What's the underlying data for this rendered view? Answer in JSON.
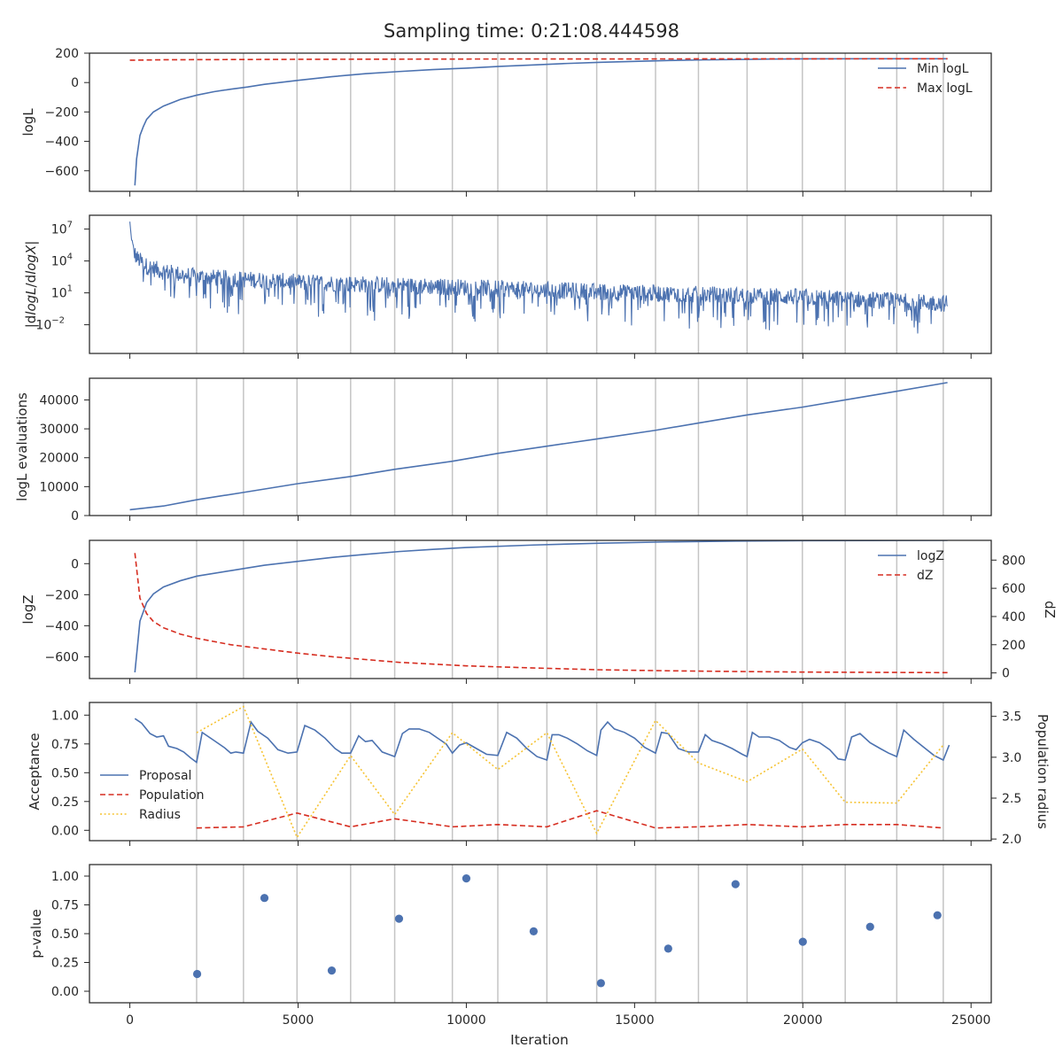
{
  "figure": {
    "title": "Sampling time: 0:21:08.444598",
    "xlabel": "Iteration",
    "xticks": [
      0,
      5000,
      10000,
      15000,
      20000,
      25000
    ],
    "xlim": [
      -1200,
      25600
    ],
    "insertion_lines": [
      1984,
      3377,
      4968,
      6561,
      7871,
      9585,
      10936,
      12394,
      13875,
      15623,
      16898,
      18344,
      19987,
      21260,
      22792,
      24174
    ],
    "colors": {
      "blue": "#4c72b0",
      "red": "#d62d20",
      "yellow": "#f6c333",
      "grid": "#c4c4c4"
    }
  },
  "chart_data": [
    {
      "id": "logl",
      "type": "line",
      "ylabel": "logL",
      "ylim": [
        -740,
        200
      ],
      "yticks": [
        200,
        0,
        -200,
        -400,
        -600
      ],
      "yticklabels": [
        "200",
        "0",
        "−200",
        "−400",
        "−600"
      ],
      "legend": "top-right",
      "series": [
        {
          "name": "Min logL",
          "style": "solid",
          "color": "#4c72b0",
          "x": [
            150,
            200,
            300,
            400,
            500,
            700,
            1000,
            1500,
            2000,
            2500,
            3000,
            3500,
            4000,
            5000,
            6000,
            7000,
            8000,
            9000,
            10000,
            11000,
            12000,
            13000,
            14000,
            15000,
            16000,
            17000,
            18000,
            19000,
            20000,
            22000,
            24300
          ],
          "y": [
            -700,
            -520,
            -360,
            -300,
            -250,
            -200,
            -160,
            -115,
            -85,
            -62,
            -45,
            -30,
            -12,
            15,
            40,
            60,
            75,
            88,
            98,
            110,
            120,
            130,
            138,
            144,
            150,
            154,
            157,
            160,
            161,
            162,
            162
          ]
        },
        {
          "name": "Max logL",
          "style": "dashed",
          "color": "#d62d20",
          "x": [
            0,
            1000,
            5000,
            10000,
            24300
          ],
          "y": [
            152,
            155,
            158,
            160,
            162
          ]
        }
      ]
    },
    {
      "id": "dlogl",
      "type": "line",
      "ylabel": "|dlogL/dlogX|",
      "scale": "log",
      "ylim_log10": [
        -4.7,
        8.3
      ],
      "yticks_log10": [
        7,
        4,
        1,
        -2
      ],
      "series": [
        {
          "name": "",
          "style": "noisy",
          "color": "#4c72b0",
          "x": [
            0,
            50,
            100,
            200,
            500,
            1000,
            2000,
            5000,
            10000,
            15000,
            20000,
            24300
          ],
          "y_log10": [
            7.7,
            6.0,
            5.0,
            4.3,
            3.5,
            3.0,
            2.5,
            2.0,
            1.5,
            1.0,
            0.6,
            0.0
          ]
        }
      ]
    },
    {
      "id": "nlike",
      "type": "line",
      "ylabel": "logL evaluations",
      "ylim": [
        0,
        47500
      ],
      "yticks": [
        0,
        10000,
        20000,
        30000,
        40000
      ],
      "series": [
        {
          "name": "",
          "style": "solid",
          "color": "#4c72b0",
          "x": [
            0,
            1000,
            2000,
            3377,
            4968,
            6561,
            7871,
            9585,
            10936,
            12394,
            13875,
            15623,
            16898,
            18344,
            19987,
            21260,
            22792,
            24300
          ],
          "y": [
            2000,
            3300,
            5500,
            8000,
            11000,
            13500,
            16000,
            18800,
            21500,
            24000,
            26500,
            29500,
            32000,
            34800,
            37500,
            40000,
            43000,
            46000
          ]
        }
      ]
    },
    {
      "id": "logz",
      "type": "line",
      "ylabel": "logZ",
      "ylabel_right": "dZ",
      "ylim": [
        -740,
        150
      ],
      "yticks": [
        0,
        -200,
        -400,
        -600
      ],
      "yticklabels": [
        "0",
        "−200",
        "−400",
        "−600"
      ],
      "ylim_right": [
        -40,
        940
      ],
      "yticks_right": [
        0,
        200,
        400,
        600,
        800
      ],
      "legend": "top-right",
      "series": [
        {
          "name": "logZ",
          "style": "solid",
          "color": "#4c72b0",
          "axis": "left",
          "x": [
            150,
            300,
            500,
            700,
            1000,
            1500,
            2000,
            3000,
            4000,
            5000,
            6000,
            7000,
            8000,
            9000,
            10000,
            12000,
            14000,
            16000,
            18000,
            20000,
            22000,
            24300
          ],
          "y": [
            -700,
            -370,
            -250,
            -195,
            -150,
            -110,
            -80,
            -45,
            -10,
            15,
            40,
            60,
            78,
            92,
            104,
            120,
            132,
            140,
            145,
            148,
            149,
            150
          ]
        },
        {
          "name": "dZ",
          "style": "dashed",
          "color": "#d62d20",
          "axis": "right",
          "x": [
            150,
            300,
            500,
            700,
            1000,
            1500,
            2000,
            3000,
            4000,
            5000,
            6000,
            7000,
            8000,
            10000,
            12000,
            14000,
            16000,
            18000,
            20000,
            22000,
            24300
          ],
          "y": [
            850,
            530,
            420,
            365,
            320,
            275,
            245,
            200,
            170,
            140,
            115,
            95,
            75,
            50,
            35,
            22,
            15,
            10,
            6,
            4,
            2
          ]
        }
      ]
    },
    {
      "id": "acceptance",
      "type": "line",
      "ylabel": "Acceptance",
      "ylabel_right": "Population radius",
      "ylim": [
        -0.09,
        1.11
      ],
      "yticks": [
        1.0,
        0.75,
        0.5,
        0.25,
        0.0
      ],
      "yticklabels": [
        "1.00",
        "0.75",
        "0.50",
        "0.25",
        "0.00"
      ],
      "ylim_right": [
        1.98,
        3.67
      ],
      "yticks_right": [
        2.0,
        2.5,
        3.0,
        3.5
      ],
      "legend": "bottom-left",
      "series": [
        {
          "name": "Proposal",
          "style": "solid",
          "color": "#4c72b0",
          "axis": "left",
          "x": [
            150,
            350,
            600,
            800,
            1000,
            1150,
            1400,
            1600,
            1800,
            1984,
            2150,
            2500,
            2800,
            3000,
            3150,
            3377,
            3600,
            3800,
            4100,
            4400,
            4700,
            4968,
            5200,
            5500,
            5800,
            6100,
            6300,
            6561,
            6800,
            7000,
            7200,
            7500,
            7871,
            8100,
            8300,
            8600,
            8900,
            9200,
            9400,
            9585,
            9800,
            10000,
            10300,
            10600,
            10936,
            11200,
            11500,
            11800,
            12100,
            12394,
            12550,
            12750,
            13000,
            13300,
            13600,
            13875,
            14000,
            14200,
            14400,
            14700,
            15000,
            15300,
            15623,
            15800,
            16000,
            16300,
            16600,
            16898,
            17100,
            17300,
            17600,
            17900,
            18200,
            18344,
            18500,
            18700,
            19000,
            19300,
            19600,
            19800,
            19987,
            20200,
            20500,
            20800,
            21050,
            21260,
            21450,
            21700,
            22000,
            22300,
            22550,
            22792,
            23000,
            23300,
            23600,
            23900,
            24174,
            24350
          ],
          "y": [
            0.97,
            0.93,
            0.84,
            0.81,
            0.82,
            0.73,
            0.71,
            0.68,
            0.63,
            0.59,
            0.85,
            0.78,
            0.72,
            0.67,
            0.68,
            0.67,
            0.94,
            0.86,
            0.8,
            0.7,
            0.67,
            0.68,
            0.91,
            0.87,
            0.8,
            0.71,
            0.67,
            0.67,
            0.82,
            0.77,
            0.78,
            0.68,
            0.64,
            0.84,
            0.88,
            0.88,
            0.85,
            0.79,
            0.75,
            0.67,
            0.74,
            0.76,
            0.71,
            0.66,
            0.65,
            0.85,
            0.8,
            0.71,
            0.64,
            0.61,
            0.83,
            0.83,
            0.8,
            0.75,
            0.69,
            0.65,
            0.87,
            0.94,
            0.88,
            0.85,
            0.8,
            0.72,
            0.67,
            0.85,
            0.84,
            0.71,
            0.68,
            0.68,
            0.83,
            0.78,
            0.75,
            0.71,
            0.66,
            0.64,
            0.85,
            0.81,
            0.81,
            0.78,
            0.72,
            0.7,
            0.76,
            0.79,
            0.76,
            0.7,
            0.62,
            0.61,
            0.81,
            0.84,
            0.76,
            0.71,
            0.67,
            0.64,
            0.87,
            0.79,
            0.72,
            0.65,
            0.61,
            0.74
          ]
        },
        {
          "name": "Population",
          "style": "dashed",
          "color": "#d62d20",
          "axis": "left",
          "x": [
            1984,
            3377,
            4968,
            6561,
            7871,
            9585,
            10936,
            12394,
            13875,
            15623,
            16898,
            18344,
            19987,
            21260,
            22792,
            24174
          ],
          "y": [
            0.02,
            0.03,
            0.15,
            0.03,
            0.1,
            0.03,
            0.05,
            0.03,
            0.17,
            0.02,
            0.03,
            0.05,
            0.03,
            0.05,
            0.05,
            0.02
          ]
        },
        {
          "name": "Radius",
          "style": "dotted",
          "color": "#f6c333",
          "axis": "right",
          "x": [
            1984,
            3377,
            4968,
            6561,
            7871,
            9585,
            10936,
            12394,
            13875,
            15623,
            16898,
            18344,
            19987,
            21260,
            22792,
            24174
          ],
          "y": [
            3.3,
            3.62,
            2.02,
            3.02,
            2.3,
            3.3,
            2.85,
            3.3,
            2.07,
            3.45,
            2.93,
            2.7,
            3.1,
            2.45,
            2.44,
            3.15
          ]
        }
      ]
    },
    {
      "id": "pvalue",
      "type": "scatter",
      "ylabel": "p-value",
      "ylim": [
        -0.1,
        1.1
      ],
      "yticks": [
        1.0,
        0.75,
        0.5,
        0.25,
        0.0
      ],
      "yticklabels": [
        "1.00",
        "0.75",
        "0.50",
        "0.25",
        "0.00"
      ],
      "series": [
        {
          "name": "",
          "style": "markers",
          "color": "#4c72b0",
          "x": [
            2000,
            4000,
            6000,
            8000,
            10000,
            12000,
            14000,
            16000,
            18000,
            20000,
            22000,
            24000
          ],
          "y": [
            0.15,
            0.81,
            0.18,
            0.63,
            0.98,
            0.52,
            0.07,
            0.37,
            0.93,
            0.43,
            0.56,
            0.66
          ]
        }
      ]
    }
  ]
}
